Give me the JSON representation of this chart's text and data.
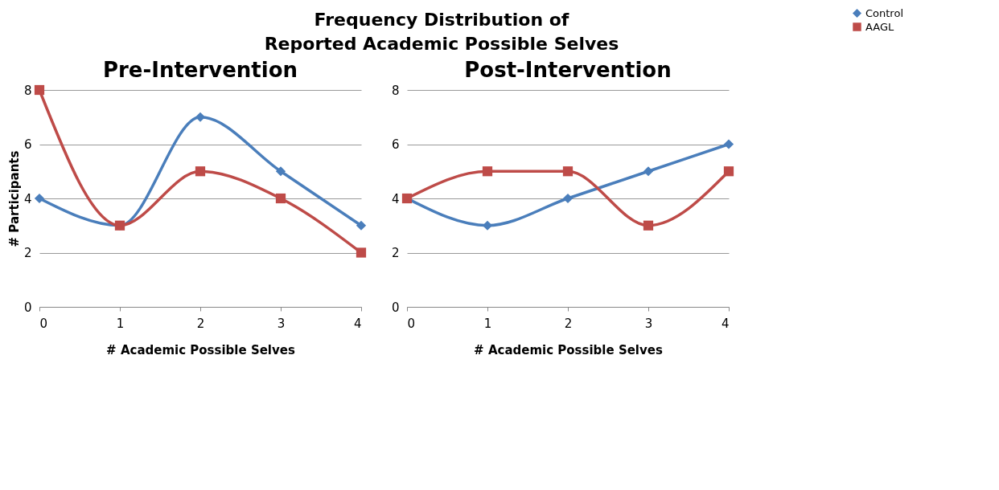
{
  "chart_data": [
    {
      "type": "other",
      "title": "Frequency Distribution of\nReported Academic Possible Selves"
    },
    {
      "type": "line",
      "title": "Pre-Intervention",
      "xlabel": "# Academic Possible Selves",
      "ylabel": "# Participants",
      "x": [
        0,
        1,
        2,
        3,
        4
      ],
      "xlim": [
        0,
        4
      ],
      "xticks": [
        0,
        1,
        2,
        3,
        4
      ],
      "ylim": [
        0,
        8
      ],
      "yticks": [
        0,
        2,
        4,
        6,
        8
      ],
      "grid": "y",
      "legend": "right",
      "line_style": "solid",
      "series": [
        {
          "name": "Control",
          "color": "#4a7ebb",
          "marker": "diamond",
          "values": [
            4,
            3,
            7,
            5,
            3
          ]
        },
        {
          "name": "AAGL",
          "color": "#be4b48",
          "marker": "square",
          "values": [
            8,
            3,
            5,
            4,
            2
          ]
        }
      ]
    },
    {
      "type": "line",
      "title": "Post-Intervention",
      "xlabel": "# Academic Possible Selves",
      "x": [
        0,
        1,
        2,
        3,
        4
      ],
      "xlim": [
        0,
        4
      ],
      "xticks": [
        0,
        1,
        2,
        3,
        4
      ],
      "ylim": [
        0,
        8
      ],
      "yticks": [
        0,
        2,
        4,
        6,
        8
      ],
      "grid": "y",
      "legend": "right",
      "line_style": "solid",
      "series": [
        {
          "name": "Control",
          "color": "#4a7ebb",
          "marker": "diamond",
          "values": [
            4,
            3,
            4,
            5,
            6
          ]
        },
        {
          "name": "AAGL",
          "color": "#be4b48",
          "marker": "square",
          "values": [
            4,
            5,
            5,
            3,
            5
          ]
        }
      ]
    }
  ]
}
